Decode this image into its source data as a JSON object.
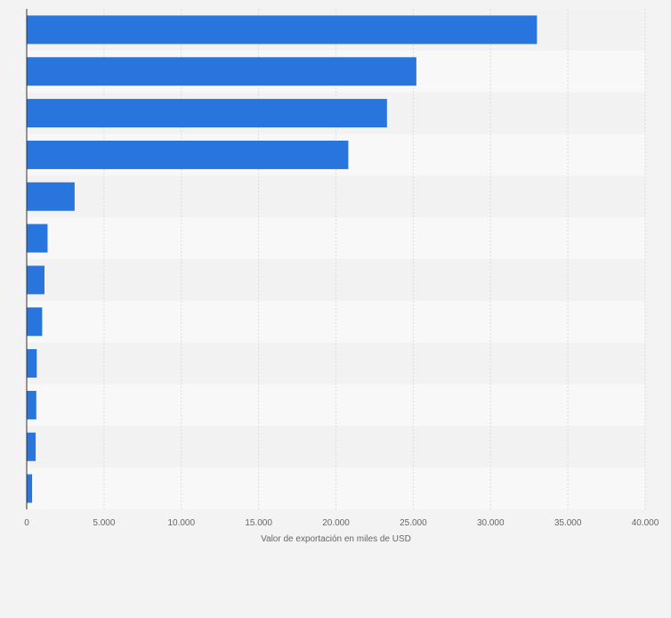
{
  "chart_data": {
    "type": "bar",
    "orientation": "horizontal",
    "categories": [
      "",
      "",
      "",
      "",
      "",
      "",
      "",
      "",
      "",
      "",
      "",
      ""
    ],
    "values": [
      33000,
      25200,
      23300,
      20800,
      3100,
      1350,
      1150,
      1000,
      650,
      620,
      580,
      350
    ],
    "xlabel": "Valor de exportación en miles de USD",
    "ylabel": "",
    "xlim": [
      0,
      40000
    ],
    "x_ticks": [
      0,
      5000,
      10000,
      15000,
      20000,
      25000,
      30000,
      35000,
      40000
    ],
    "x_tick_labels": [
      "0",
      "5.000",
      "10.000",
      "15.000",
      "20.000",
      "25.000",
      "30.000",
      "35.000",
      "40.000"
    ],
    "grid": true,
    "legend": "none",
    "colors": {
      "bar": "#2876dd",
      "background": "#f3f3f3",
      "band_light": "#f8f8f8",
      "band_dark": "#f2f2f2",
      "gridline": "#dcdcdc",
      "axis": "#333333",
      "tick_text": "#666666"
    }
  }
}
